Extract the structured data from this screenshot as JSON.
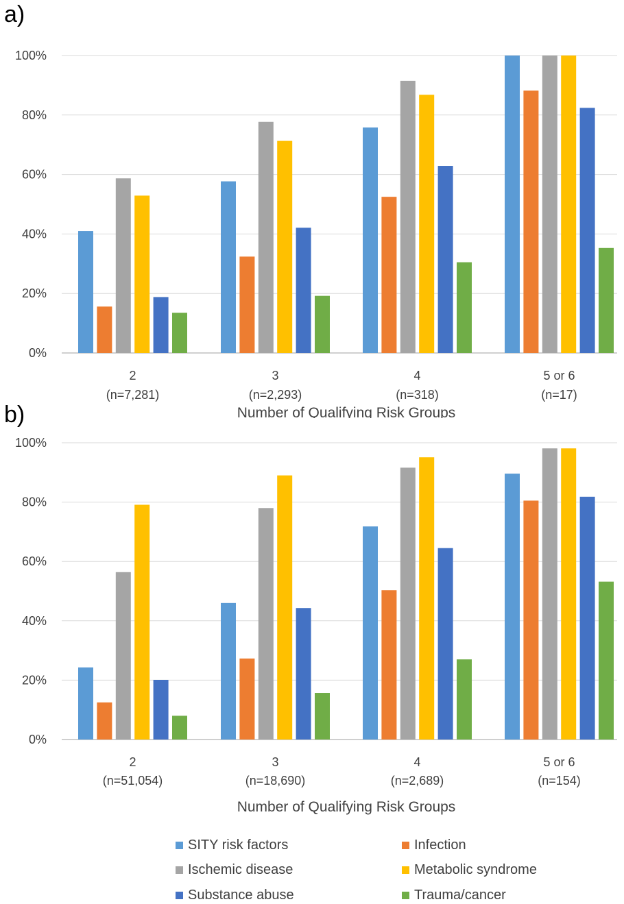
{
  "panels": [
    {
      "label": "a)",
      "xlabel": "Number of Qualifying Risk Groups"
    },
    {
      "label": "b)",
      "xlabel": "Number of Qualifying Risk Groups"
    }
  ],
  "legend": [
    {
      "name": "SITY risk factors",
      "color": "#5B9BD5"
    },
    {
      "name": "Infection",
      "color": "#ED7D31"
    },
    {
      "name": "Ischemic disease",
      "color": "#A5A5A5"
    },
    {
      "name": "Metabolic syndrome",
      "color": "#FFC000"
    },
    {
      "name": "Substance abuse",
      "color": "#4472C4"
    },
    {
      "name": "Trauma/cancer",
      "color": "#70AD47"
    }
  ],
  "chart_data": [
    {
      "type": "bar",
      "title": "",
      "xlabel": "Number of Qualifying Risk Groups",
      "ylabel": "",
      "ylim": [
        0,
        100
      ],
      "yticks": [
        "0%",
        "20%",
        "40%",
        "60%",
        "80%",
        "100%"
      ],
      "grid": true,
      "legend_position": "bottom",
      "categories": [
        [
          "2",
          "(n=7,281)"
        ],
        [
          "3",
          "(n=2,293)"
        ],
        [
          "4",
          "(n=318)"
        ],
        [
          "5 or 6",
          "(n=17)"
        ]
      ],
      "series": [
        {
          "name": "SITY risk factors",
          "color": "#5B9BD5",
          "values": [
            41,
            57.7,
            75.8,
            100
          ]
        },
        {
          "name": "Infection",
          "color": "#ED7D31",
          "values": [
            15.6,
            32.4,
            52.5,
            88.2
          ]
        },
        {
          "name": "Ischemic disease",
          "color": "#A5A5A5",
          "values": [
            58.7,
            77.7,
            91.5,
            100
          ]
        },
        {
          "name": "Metabolic syndrome",
          "color": "#FFC000",
          "values": [
            52.9,
            71.3,
            86.8,
            100
          ]
        },
        {
          "name": "Substance abuse",
          "color": "#4472C4",
          "values": [
            18.8,
            42.1,
            62.9,
            82.4
          ]
        },
        {
          "name": "Trauma/cancer",
          "color": "#70AD47",
          "values": [
            13.5,
            19.2,
            30.5,
            35.3
          ]
        }
      ]
    },
    {
      "type": "bar",
      "title": "",
      "xlabel": "Number of Qualifying Risk Groups",
      "ylabel": "",
      "ylim": [
        0,
        100
      ],
      "yticks": [
        "0%",
        "20%",
        "40%",
        "60%",
        "80%",
        "100%"
      ],
      "grid": true,
      "legend_position": "bottom",
      "categories": [
        [
          "2",
          "(n=51,054)"
        ],
        [
          "3",
          "(n=18,690)"
        ],
        [
          "4",
          "(n=2,689)"
        ],
        [
          "5 or 6",
          "(n=154)"
        ]
      ],
      "series": [
        {
          "name": "SITY risk factors",
          "color": "#5B9BD5",
          "values": [
            24.3,
            46,
            71.8,
            89.6
          ]
        },
        {
          "name": "Infection",
          "color": "#ED7D31",
          "values": [
            12.5,
            27.3,
            50.3,
            80.5
          ]
        },
        {
          "name": "Ischemic disease",
          "color": "#A5A5A5",
          "values": [
            56.4,
            78,
            91.6,
            98.1
          ]
        },
        {
          "name": "Metabolic syndrome",
          "color": "#FFC000",
          "values": [
            79.1,
            89,
            95.1,
            98.1
          ]
        },
        {
          "name": "Substance abuse",
          "color": "#4472C4",
          "values": [
            20.1,
            44.3,
            64.5,
            81.8
          ]
        },
        {
          "name": "Trauma/cancer",
          "color": "#70AD47",
          "values": [
            8,
            15.7,
            27,
            53.2
          ]
        }
      ]
    }
  ]
}
